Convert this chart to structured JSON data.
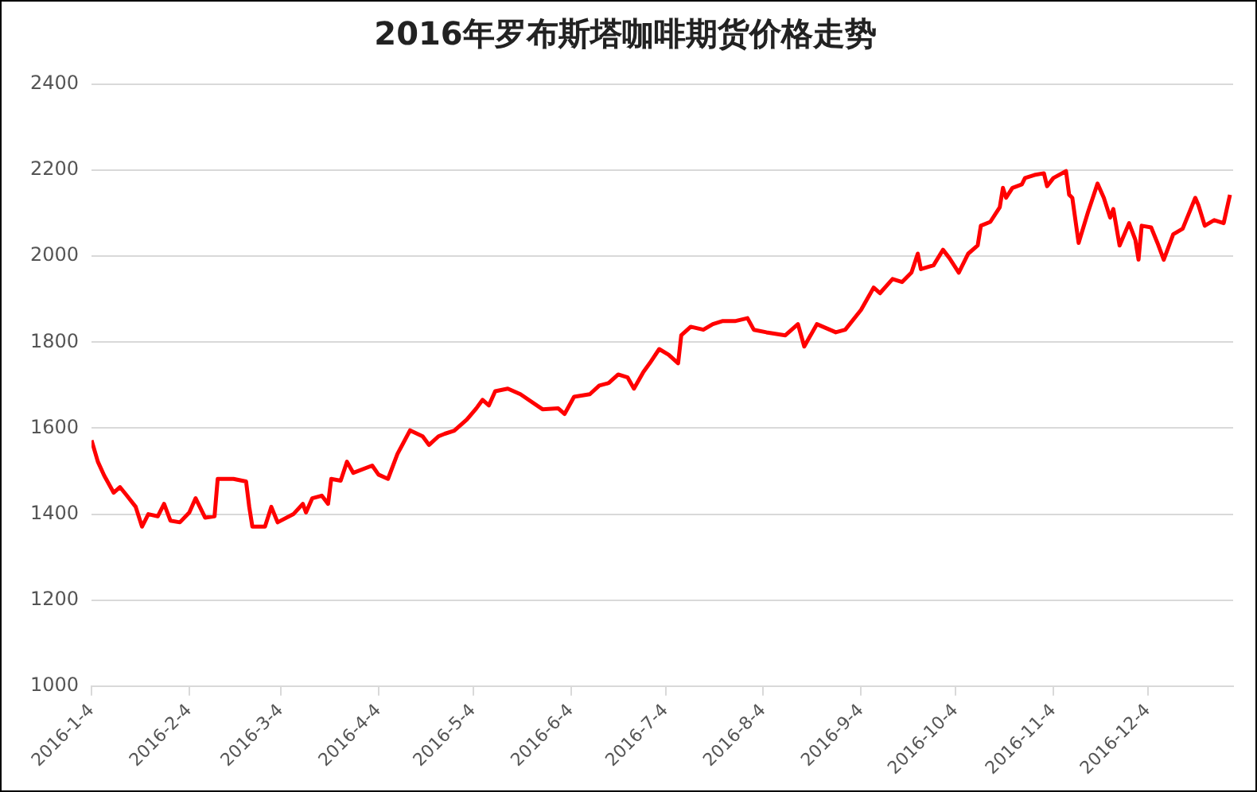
{
  "chart_data": {
    "type": "line",
    "title": "2016年罗布斯塔咖啡期货价格走势",
    "x": [
      "2016-01-04",
      "2016-01-06",
      "2016-01-08",
      "2016-01-11",
      "2016-01-13",
      "2016-01-15",
      "2016-01-18",
      "2016-01-20",
      "2016-01-22",
      "2016-01-25",
      "2016-01-27",
      "2016-01-29",
      "2016-02-01",
      "2016-02-04",
      "2016-02-06",
      "2016-02-09",
      "2016-02-12",
      "2016-02-13",
      "2016-02-18",
      "2016-02-22",
      "2016-02-23",
      "2016-02-24",
      "2016-02-28",
      "2016-03-01",
      "2016-03-03",
      "2016-03-08",
      "2016-03-11",
      "2016-03-12",
      "2016-03-14",
      "2016-03-17",
      "2016-03-19",
      "2016-03-20",
      "2016-03-23",
      "2016-03-25",
      "2016-03-27",
      "2016-04-02",
      "2016-04-04",
      "2016-04-07",
      "2016-04-10",
      "2016-04-14",
      "2016-04-18",
      "2016-04-20",
      "2016-04-23",
      "2016-04-25",
      "2016-04-28",
      "2016-05-02",
      "2016-05-05",
      "2016-05-07",
      "2016-05-09",
      "2016-05-11",
      "2016-05-15",
      "2016-05-19",
      "2016-05-26",
      "2016-05-31",
      "2016-06-02",
      "2016-06-05",
      "2016-06-10",
      "2016-06-13",
      "2016-06-16",
      "2016-06-19",
      "2016-06-22",
      "2016-06-24",
      "2016-06-27",
      "2016-06-29",
      "2016-07-02",
      "2016-07-05",
      "2016-07-08",
      "2016-07-09",
      "2016-07-12",
      "2016-07-16",
      "2016-07-19",
      "2016-07-22",
      "2016-07-26",
      "2016-07-30",
      "2016-08-01",
      "2016-08-05",
      "2016-08-11",
      "2016-08-15",
      "2016-08-17",
      "2016-08-21",
      "2016-08-27",
      "2016-08-30",
      "2016-09-04",
      "2016-09-08",
      "2016-09-10",
      "2016-09-14",
      "2016-09-17",
      "2016-09-20",
      "2016-09-22",
      "2016-09-23",
      "2016-09-27",
      "2016-09-30",
      "2016-10-02",
      "2016-10-05",
      "2016-10-08",
      "2016-10-11",
      "2016-10-12",
      "2016-10-15",
      "2016-10-18",
      "2016-10-19",
      "2016-10-20",
      "2016-10-22",
      "2016-10-25",
      "2016-10-26",
      "2016-10-29",
      "2016-11-01",
      "2016-11-02",
      "2016-11-04",
      "2016-11-08",
      "2016-11-09",
      "2016-11-10",
      "2016-11-12",
      "2016-11-15",
      "2016-11-18",
      "2016-11-20",
      "2016-11-22",
      "2016-11-23",
      "2016-11-25",
      "2016-11-28",
      "2016-11-30",
      "2016-12-01",
      "2016-12-02",
      "2016-12-05",
      "2016-12-07",
      "2016-12-09",
      "2016-12-12",
      "2016-12-15",
      "2016-12-19",
      "2016-12-20",
      "2016-12-22",
      "2016-12-25",
      "2016-12-28",
      "2016-12-30"
    ],
    "series": [
      {
        "color": "#ff0000",
        "values": [
          1572,
          1522,
          1490,
          1450,
          1463,
          1445,
          1417,
          1371,
          1400,
          1395,
          1424,
          1385,
          1381,
          1404,
          1437,
          1392,
          1395,
          1482,
          1482,
          1476,
          1417,
          1371,
          1371,
          1417,
          1381,
          1400,
          1424,
          1404,
          1437,
          1443,
          1424,
          1482,
          1478,
          1522,
          1496,
          1513,
          1492,
          1482,
          1540,
          1595,
          1581,
          1561,
          1581,
          1587,
          1594,
          1620,
          1646,
          1666,
          1653,
          1686,
          1692,
          1679,
          1644,
          1646,
          1633,
          1673,
          1679,
          1699,
          1705,
          1725,
          1718,
          1692,
          1731,
          1751,
          1784,
          1771,
          1751,
          1816,
          1836,
          1829,
          1842,
          1849,
          1849,
          1856,
          1829,
          1823,
          1816,
          1842,
          1790,
          1842,
          1823,
          1829,
          1875,
          1927,
          1914,
          1947,
          1940,
          1962,
          2006,
          1970,
          1979,
          2015,
          1996,
          1962,
          2006,
          2025,
          2071,
          2080,
          2114,
          2159,
          2136,
          2159,
          2167,
          2182,
          2189,
          2193,
          2163,
          2182,
          2198,
          2143,
          2136,
          2031,
          2103,
          2169,
          2136,
          2090,
          2110,
          2025,
          2077,
          2038,
          1992,
          2071,
          2067,
          2031,
          1992,
          2051,
          2064,
          2136,
          2119,
          2071,
          2084,
          2077,
          2143
        ]
      }
    ],
    "xlim": [
      "2016-01-04",
      "2016-12-31"
    ],
    "xticks": [
      {
        "value": "2016-01-04",
        "label": "2016-1-4"
      },
      {
        "value": "2016-02-04",
        "label": "2016-2-4"
      },
      {
        "value": "2016-03-04",
        "label": "2016-3-4"
      },
      {
        "value": "2016-04-04",
        "label": "2016-4-4"
      },
      {
        "value": "2016-05-04",
        "label": "2016-5-4"
      },
      {
        "value": "2016-06-04",
        "label": "2016-6-4"
      },
      {
        "value": "2016-07-04",
        "label": "2016-7-4"
      },
      {
        "value": "2016-08-04",
        "label": "2016-8-4"
      },
      {
        "value": "2016-09-04",
        "label": "2016-9-4"
      },
      {
        "value": "2016-10-04",
        "label": "2016-10-4"
      },
      {
        "value": "2016-11-04",
        "label": "2016-11-4"
      },
      {
        "value": "2016-12-04",
        "label": "2016-12-4"
      }
    ],
    "ylim": [
      1000,
      2400
    ],
    "yticks": [
      1000,
      1200,
      1400,
      1600,
      1800,
      2000,
      2200,
      2400
    ],
    "grid": "y"
  }
}
